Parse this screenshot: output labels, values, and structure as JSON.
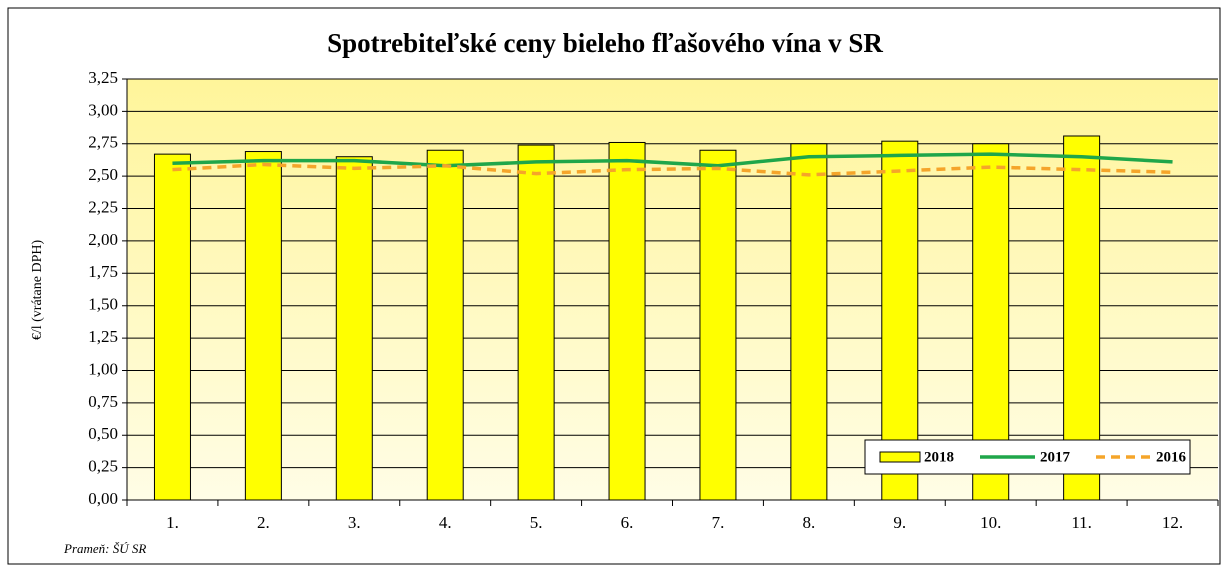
{
  "chart_data": {
    "type": "bar",
    "title": "Spotrebiteľské ceny bieleho fľašového vína v SR",
    "y_label": "€/l (vrátane DPH)",
    "source": "Prameň: ŠÚ SR",
    "categories": [
      "1.",
      "2.",
      "3.",
      "4.",
      "5.",
      "6.",
      "7.",
      "8.",
      "9.",
      "10.",
      "11.",
      "12."
    ],
    "series": [
      {
        "name": "2018",
        "type": "bar",
        "color": "#ffff00",
        "values": [
          2.67,
          2.69,
          2.65,
          2.7,
          2.74,
          2.76,
          2.7,
          2.75,
          2.77,
          2.75,
          2.81,
          null
        ]
      },
      {
        "name": "2017",
        "type": "line",
        "color": "#1fa64a",
        "values": [
          2.6,
          2.62,
          2.62,
          2.58,
          2.61,
          2.62,
          2.58,
          2.65,
          2.66,
          2.67,
          2.65,
          2.61
        ]
      },
      {
        "name": "2016",
        "type": "line",
        "dashed": true,
        "color": "#f5a52a",
        "values": [
          2.55,
          2.59,
          2.56,
          2.58,
          2.52,
          2.55,
          2.56,
          2.51,
          2.54,
          2.57,
          2.55,
          2.53
        ]
      }
    ],
    "ylim": [
      0,
      3.25
    ],
    "yticks": [
      {
        "value": 0,
        "label": "0,00"
      },
      {
        "value": 0.25,
        "label": "0,25"
      },
      {
        "value": 0.5,
        "label": "0,50"
      },
      {
        "value": 0.75,
        "label": "0,75"
      },
      {
        "value": 1,
        "label": "1,00"
      },
      {
        "value": 1.25,
        "label": "1,25"
      },
      {
        "value": 1.5,
        "label": "1,50"
      },
      {
        "value": 1.75,
        "label": "1,75"
      },
      {
        "value": 2,
        "label": "2,00"
      },
      {
        "value": 2.25,
        "label": "2,25"
      },
      {
        "value": 2.5,
        "label": "2,50"
      },
      {
        "value": 2.75,
        "label": "2,75"
      },
      {
        "value": 3,
        "label": "3,00"
      },
      {
        "value": 3.25,
        "label": "3,25"
      }
    ],
    "grid": true,
    "legend": "bottom-right"
  }
}
